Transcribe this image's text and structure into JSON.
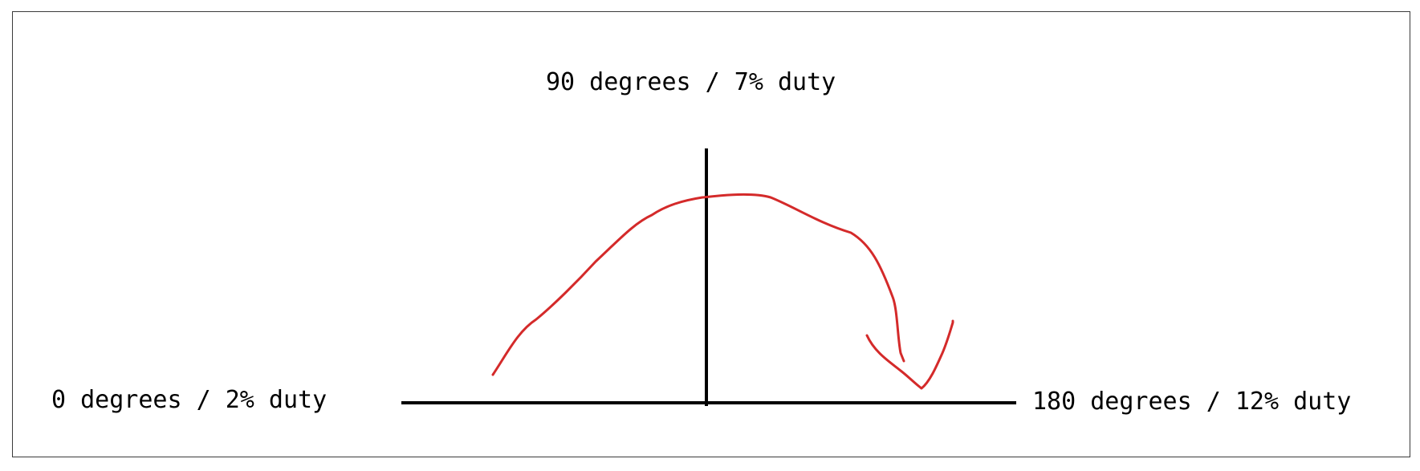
{
  "labels": {
    "top": "90 degrees / 7% duty",
    "left": "0 degrees / 2% duty",
    "right": "180 degrees / 12% duty"
  },
  "colors": {
    "axis": "#000000",
    "arc": "#d42a2a",
    "frame": "#3a3a3a"
  }
}
